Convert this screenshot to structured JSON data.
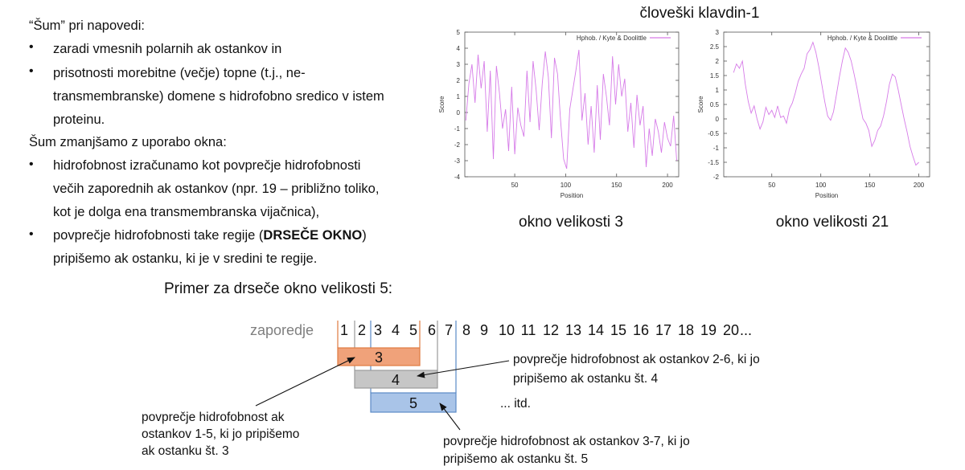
{
  "left": {
    "noise_heading": "“Šum” pri napovedi:",
    "noise_bullets": [
      [
        "zaradi vmesnih polarnih ak ostankov in"
      ],
      [
        "prisotnosti morebitne (večje) topne (t.j., ne-",
        "transmembranske) domene s hidrofobno sredico v istem",
        "proteinu."
      ]
    ],
    "reduce_heading": "Šum zmanjšamo z uporabo okna:",
    "reduce_bullets": [
      [
        "hidrofobnost izračunamo kot povprečje hidrofobnosti",
        "večih zaporednih ak ostankov (npr. 19 – približno toliko,",
        "kot je dolga ena transmembranska vijačnica),"
      ]
    ],
    "last_bullet": {
      "pre": "povprečje hidrofobnosti take regije (",
      "bold": "DRSEČE OKNO",
      "post": ")",
      "line2": "pripišemo ak ostanku, ki je v sredini te regije."
    },
    "bullet_char": "•"
  },
  "chart_data": [
    {
      "type": "line",
      "title": "človeški klavdin-1",
      "caption": "okno velikosti 3",
      "legend": "Hphob. / Kyte & Doolittle",
      "xlabel": "Position",
      "ylabel": "Score",
      "xlim": [
        1,
        211
      ],
      "ylim": [
        -4,
        5
      ],
      "xticks": [
        50,
        100,
        150,
        200
      ],
      "yticks": [
        5,
        4,
        3,
        2,
        1,
        0,
        -1,
        -2,
        -3,
        -4
      ],
      "line_color": "#d67be8",
      "x": [
        2,
        5,
        8,
        11,
        14,
        17,
        20,
        23,
        26,
        29,
        32,
        35,
        38,
        41,
        44,
        47,
        50,
        53,
        56,
        59,
        62,
        65,
        68,
        71,
        74,
        77,
        80,
        83,
        86,
        89,
        92,
        95,
        98,
        101,
        104,
        107,
        110,
        113,
        116,
        119,
        122,
        125,
        128,
        131,
        134,
        137,
        140,
        143,
        146,
        149,
        152,
        155,
        158,
        161,
        164,
        167,
        170,
        173,
        176,
        179,
        182,
        185,
        188,
        191,
        194,
        197,
        200,
        203,
        206,
        209
      ],
      "y": [
        -0.5,
        1.8,
        3.0,
        0.6,
        3.6,
        1.5,
        3.2,
        -1.2,
        2.6,
        -2.9,
        2.9,
        1.2,
        -1.0,
        0.2,
        -2.4,
        1.6,
        -2.6,
        0.3,
        -0.8,
        -1.5,
        2.6,
        -0.6,
        3.2,
        1.4,
        -1.1,
        1.8,
        3.8,
        2.2,
        -1.6,
        3.4,
        2.4,
        -0.5,
        -2.9,
        -3.5,
        0.2,
        1.4,
        2.6,
        3.9,
        -0.5,
        1.2,
        -2.0,
        0.4,
        -2.5,
        1.7,
        -1.7,
        2.4,
        1.0,
        -0.8,
        3.5,
        0.5,
        3.0,
        1.0,
        2.1,
        -1.2,
        0.6,
        -2.2,
        1.1,
        -0.8,
        0.4,
        -3.4,
        -1.0,
        -2.7,
        -0.4,
        -1.2,
        -2.5,
        -0.6,
        -1.6,
        -2.1,
        -0.2,
        -3.0
      ]
    },
    {
      "type": "line",
      "caption": "okno velikosti 21",
      "legend": "Hphob. / Kyte & Doolittle",
      "xlabel": "Position",
      "ylabel": "Score",
      "xlim": [
        1,
        211
      ],
      "ylim": [
        -2,
        3
      ],
      "xticks": [
        50,
        100,
        150,
        200
      ],
      "yticks": [
        3,
        2.5,
        2,
        1.5,
        1,
        0.5,
        0,
        -0.5,
        -1,
        -1.5,
        -2
      ],
      "line_color": "#d67be8",
      "x": [
        11,
        14,
        17,
        20,
        23,
        26,
        29,
        32,
        35,
        38,
        41,
        44,
        47,
        50,
        53,
        56,
        59,
        62,
        65,
        68,
        71,
        74,
        77,
        80,
        83,
        86,
        89,
        92,
        95,
        98,
        101,
        104,
        107,
        110,
        113,
        116,
        119,
        122,
        125,
        128,
        131,
        134,
        137,
        140,
        143,
        146,
        149,
        152,
        155,
        158,
        161,
        164,
        167,
        170,
        173,
        176,
        179,
        182,
        185,
        188,
        191,
        194,
        197,
        200
      ],
      "y": [
        1.6,
        1.9,
        1.75,
        2.0,
        1.2,
        0.6,
        0.2,
        0.45,
        0.0,
        -0.35,
        -0.1,
        0.4,
        0.15,
        0.3,
        0.05,
        0.45,
        0.05,
        0.1,
        -0.15,
        0.35,
        0.55,
        0.9,
        1.3,
        1.55,
        1.75,
        2.25,
        2.4,
        2.65,
        2.3,
        1.8,
        1.2,
        0.6,
        0.1,
        -0.05,
        0.25,
        0.85,
        1.45,
        2.0,
        2.45,
        2.3,
        2.0,
        1.55,
        1.05,
        0.5,
        0.0,
        -0.15,
        -0.4,
        -0.95,
        -0.75,
        -0.4,
        -0.25,
        0.1,
        0.6,
        1.2,
        1.55,
        1.45,
        1.0,
        0.5,
        0.0,
        -0.45,
        -0.95,
        -1.3,
        -1.6,
        -1.5
      ]
    }
  ],
  "example": {
    "title": "Primer za drseče okno velikosti 5:",
    "sequence_label": "zaporedje",
    "sequence": [
      "1",
      "2",
      "3",
      "4",
      "5",
      "6",
      "7",
      "8",
      "9",
      "10",
      "11",
      "12",
      "13",
      "14",
      "15",
      "16",
      "17",
      "18",
      "19",
      "20"
    ],
    "ellipsis": "...",
    "windows": [
      {
        "label": "3",
        "color": "#f0a27a",
        "border": "#e07a40"
      },
      {
        "label": "4",
        "color": "#c6c6c6",
        "border": "#9a9a9a"
      },
      {
        "label": "5",
        "color": "#a9c4e8",
        "border": "#5a8ac6"
      }
    ],
    "note_4_line1": "povprečje hidrofobnost ak ostankov 2-6, ki jo",
    "note_4_line2": "pripišemo ak ostanku št. 4",
    "note_3_line1": "povprečje hidrofobnost ak",
    "note_3_line2": "ostankov 1-5, ki jo pripišemo",
    "note_3_line3": "ak ostanku št. 3",
    "note_5_line1": "povprečje hidrofobnost ak ostankov 3-7, ki jo",
    "note_5_line2": "pripišemo ak ostanku št. 5",
    "etc": "... itd."
  }
}
